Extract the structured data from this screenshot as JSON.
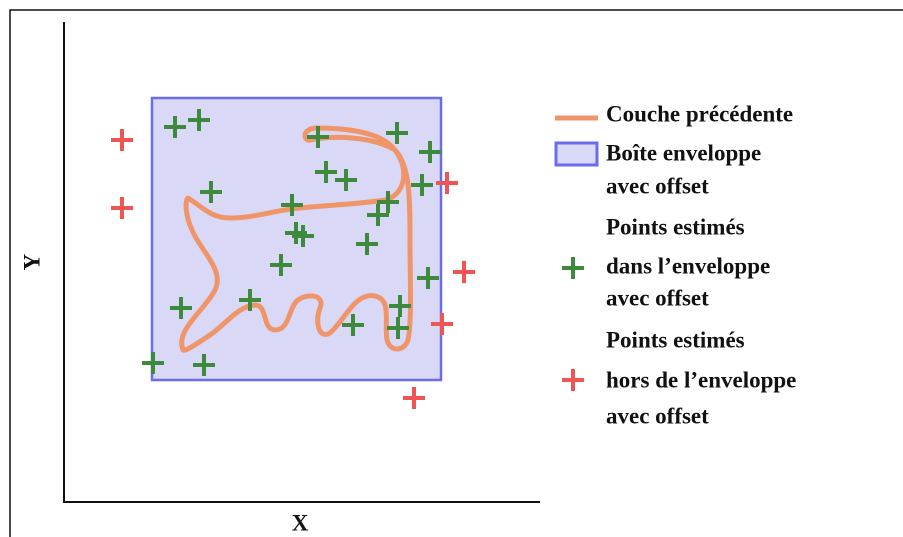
{
  "axes": {
    "x_label": "X",
    "y_label": "Y"
  },
  "legend": {
    "items": [
      {
        "lines": [
          "Couche précédente"
        ]
      },
      {
        "lines": [
          "Boîte enveloppe",
          "avec offset"
        ]
      },
      {
        "lines": [
          "Points estimés",
          "dans l’enveloppe",
          "avec offset"
        ]
      },
      {
        "lines": [
          "Points estimés",
          "hors de l’enveloppe",
          "avec offset"
        ]
      }
    ]
  }
}
